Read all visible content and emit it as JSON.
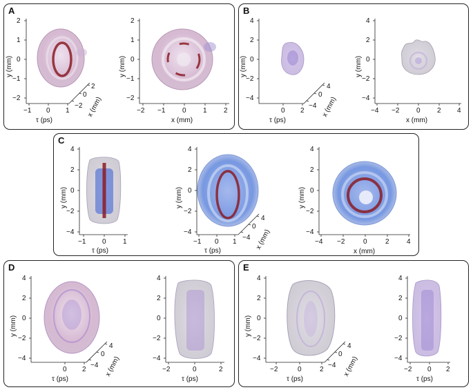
{
  "panels": [
    {
      "id": "A",
      "label": "A"
    },
    {
      "id": "B",
      "label": "B"
    },
    {
      "id": "C",
      "label": "C"
    },
    {
      "id": "D",
      "label": "D"
    },
    {
      "id": "E",
      "label": "E"
    }
  ],
  "axes": {
    "y_label": "y (mm)",
    "x_label": "x (mm)",
    "tau_label": "τ (ps)"
  },
  "ticks": {
    "A": {
      "y": [
        "2",
        "1",
        "0",
        "−1",
        "−2"
      ],
      "tau": [
        "−1",
        "0",
        "1"
      ],
      "x3d": [
        "−2",
        "0",
        "2"
      ],
      "xflat": [
        "−2",
        "−1",
        "0",
        "1",
        "2"
      ]
    },
    "B": {
      "y": [
        "4",
        "2",
        "0",
        "−2",
        "−4"
      ],
      "tau": [
        "0",
        "2"
      ],
      "x3d": [
        "−4",
        "0",
        "4"
      ],
      "xflat": [
        "−4",
        "−2",
        "0",
        "2",
        "4"
      ]
    },
    "C": {
      "y": [
        "4",
        "2",
        "0",
        "−2",
        "−4"
      ],
      "tau_side": [
        "−1",
        "0",
        "1"
      ],
      "tau": [
        "−1",
        "0",
        "1"
      ],
      "x3d": [
        "−4",
        "0",
        "4"
      ],
      "xflat": [
        "−4",
        "−2",
        "0",
        "2",
        "4"
      ]
    },
    "D": {
      "y": [
        "4",
        "2",
        "0",
        "−2",
        "−4"
      ],
      "tau": [
        "0",
        "2"
      ],
      "x3d": [
        "−4",
        "0",
        "4"
      ],
      "tau_side": [
        "−2",
        "0",
        "2"
      ]
    },
    "E": {
      "y": [
        "4",
        "2",
        "0",
        "−2",
        "−4"
      ],
      "tau": [
        "−2",
        "0",
        "2"
      ],
      "x3d": [
        "−4",
        "0",
        "4"
      ],
      "tau_side": [
        "−2",
        "0",
        "2"
      ]
    }
  },
  "colors": {
    "pink": "#c9a3c4",
    "lavender": "#a98fd0",
    "blue": "#5f86dc",
    "darkred": "#8b1c24",
    "grey": "#9a9aa8"
  }
}
